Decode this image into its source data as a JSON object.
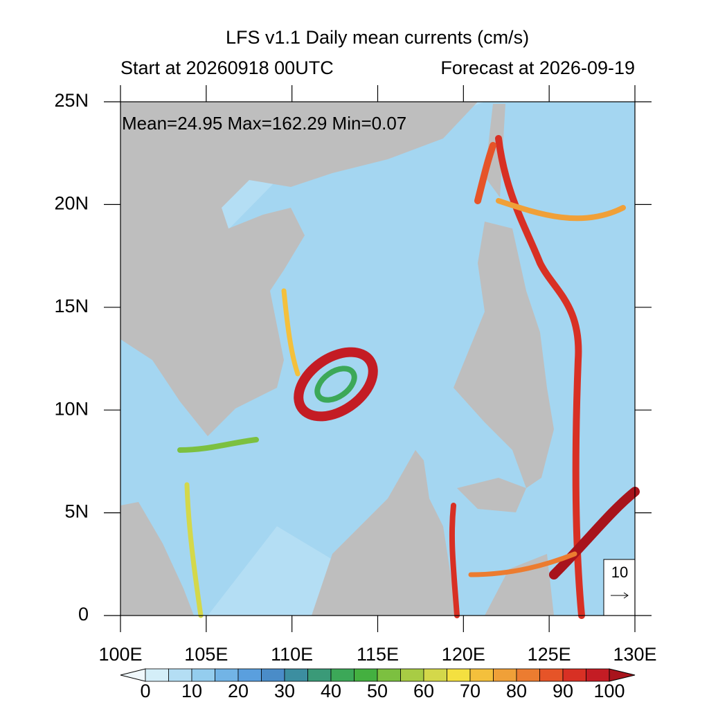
{
  "title": "LFS v1.1 Daily mean currents (cm/s)",
  "left_subtitle": "Start at 20260918 00UTC",
  "right_subtitle": "Forecast at 2026-09-19",
  "annotation": "Mean=24.95  Max=162.29  Min=0.07",
  "xlim": [
    100,
    130
  ],
  "ylim": [
    0,
    25
  ],
  "xticks": [
    {
      "value": 100,
      "label": "100E"
    },
    {
      "value": 105,
      "label": "105E"
    },
    {
      "value": 110,
      "label": "110E"
    },
    {
      "value": 115,
      "label": "115E"
    },
    {
      "value": 120,
      "label": "120E"
    },
    {
      "value": 125,
      "label": "125E"
    },
    {
      "value": 130,
      "label": "130E"
    }
  ],
  "yticks": [
    0,
    {
      "value": 5,
      "label": "5N"
    },
    {
      "value": 10,
      "label": "10N"
    },
    {
      "value": 15,
      "label": "15N"
    },
    {
      "value": 20,
      "label": "20N"
    },
    {
      "value": 25,
      "label": "25N"
    }
  ],
  "reference_vector": "10",
  "colorbar": {
    "range": [
      0,
      100
    ],
    "ticks": [
      0,
      10,
      20,
      30,
      40,
      50,
      60,
      70,
      80,
      90,
      100
    ],
    "colors": [
      "#f0f8fc",
      "#d4eef8",
      "#b4def4",
      "#94cdee",
      "#72b4e6",
      "#5a9fde",
      "#4a8cc8",
      "#3c8ea0",
      "#3a9a78",
      "#3ca858",
      "#44b040",
      "#7cc040",
      "#a8cc44",
      "#d4d84a",
      "#f4e040",
      "#f4c03c",
      "#f0a038",
      "#ec7c30",
      "#e65428",
      "#d83024",
      "#c41c24",
      "#a8141c"
    ]
  }
}
